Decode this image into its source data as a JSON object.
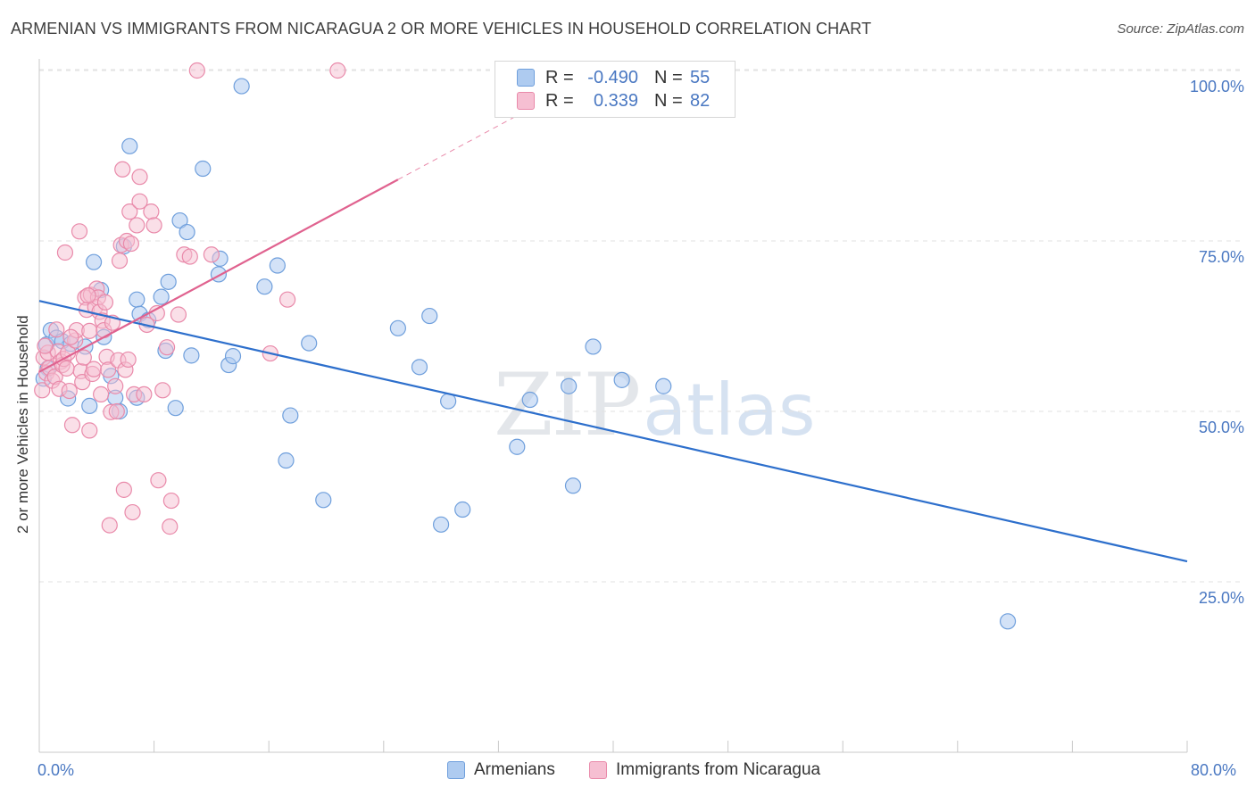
{
  "header": {
    "title": "ARMENIAN VS IMMIGRANTS FROM NICARAGUA 2 OR MORE VEHICLES IN HOUSEHOLD CORRELATION CHART",
    "source": "Source: ZipAtlas.com"
  },
  "watermark": {
    "zip": "ZIP",
    "atlas": "atlas"
  },
  "legend": {
    "series1": {
      "r_label": "R =",
      "r_value": "-0.490",
      "n_label": "N =",
      "n_value": "55"
    },
    "series2": {
      "r_label": "R =",
      "r_value": "0.339",
      "n_label": "N =",
      "n_value": "82"
    }
  },
  "colors": {
    "blue_fill": "#aecbf0",
    "blue_stroke": "#6f9fdc",
    "blue_line": "#2d6fcc",
    "pink_fill": "#f6bfd2",
    "pink_stroke": "#e98aaa",
    "pink_line": "#e0628f",
    "grid": "#e2e2e2",
    "tick_text": "#4a78c2"
  },
  "chart_data": {
    "type": "scatter",
    "title": "ARMENIAN VS IMMIGRANTS FROM NICARAGUA 2 OR MORE VEHICLES IN HOUSEHOLD CORRELATION CHART",
    "xlabel": "",
    "ylabel": "2 or more Vehicles in Household",
    "xlim": [
      0,
      80
    ],
    "ylim": [
      0,
      104
    ],
    "x_tick_labels": {
      "min": "0.0%",
      "max": "80.0%"
    },
    "y_ticks": [
      25,
      50,
      75,
      100
    ],
    "y_tick_labels": [
      "25.0%",
      "50.0%",
      "75.0%",
      "100.0%"
    ],
    "legend_position": "top-center",
    "series": [
      {
        "name": "Armenians",
        "color": "#aecbf0",
        "trend": {
          "x0": 0,
          "y0": 66.2,
          "x1": 80,
          "y1": 28.0
        },
        "points": [
          [
            0.5,
            59.8
          ],
          [
            0.6,
            56.3
          ],
          [
            0.8,
            61.9
          ],
          [
            1.2,
            60.8
          ],
          [
            1.6,
            60.3
          ],
          [
            2.0,
            51.9
          ],
          [
            2.2,
            59.9
          ],
          [
            3.2,
            59.5
          ],
          [
            3.5,
            50.8
          ],
          [
            3.8,
            71.9
          ],
          [
            4.3,
            67.8
          ],
          [
            4.5,
            60.9
          ],
          [
            5.0,
            55.2
          ],
          [
            5.3,
            52.0
          ],
          [
            5.6,
            50.0
          ],
          [
            5.9,
            74.2
          ],
          [
            6.3,
            88.9
          ],
          [
            6.8,
            66.4
          ],
          [
            6.8,
            52.0
          ],
          [
            7.0,
            64.3
          ],
          [
            7.6,
            63.4
          ],
          [
            8.5,
            66.8
          ],
          [
            8.8,
            58.9
          ],
          [
            9.0,
            69.0
          ],
          [
            9.5,
            50.5
          ],
          [
            9.8,
            78.0
          ],
          [
            10.3,
            76.3
          ],
          [
            10.6,
            58.2
          ],
          [
            11.4,
            85.6
          ],
          [
            12.5,
            70.1
          ],
          [
            12.6,
            72.4
          ],
          [
            13.2,
            56.8
          ],
          [
            13.5,
            58.1
          ],
          [
            14.1,
            97.7
          ],
          [
            15.7,
            68.3
          ],
          [
            16.6,
            71.4
          ],
          [
            17.2,
            42.8
          ],
          [
            17.5,
            49.4
          ],
          [
            18.8,
            60.0
          ],
          [
            19.8,
            37.0
          ],
          [
            25.0,
            62.2
          ],
          [
            26.5,
            56.5
          ],
          [
            27.2,
            64.0
          ],
          [
            28.0,
            33.4
          ],
          [
            28.5,
            51.5
          ],
          [
            29.5,
            35.6
          ],
          [
            33.3,
            44.8
          ],
          [
            34.2,
            51.7
          ],
          [
            36.9,
            53.7
          ],
          [
            37.2,
            39.1
          ],
          [
            38.6,
            59.5
          ],
          [
            40.6,
            54.6
          ],
          [
            43.5,
            53.7
          ],
          [
            67.5,
            19.2
          ],
          [
            0.3,
            54.8
          ]
        ]
      },
      {
        "name": "Immigrants from Nicaragua",
        "color": "#f6bfd2",
        "trend": {
          "x0": 0,
          "y0": 55.8,
          "x1": 25,
          "y1": 84.0,
          "dash_x1": 35,
          "dash_y1": 95.3
        },
        "points": [
          [
            0.2,
            53.1
          ],
          [
            0.3,
            57.9
          ],
          [
            0.5,
            55.6
          ],
          [
            0.6,
            58.6
          ],
          [
            0.7,
            56.4
          ],
          [
            0.9,
            54.5
          ],
          [
            1.1,
            55.1
          ],
          [
            1.2,
            62.0
          ],
          [
            1.3,
            58.8
          ],
          [
            1.4,
            53.3
          ],
          [
            1.5,
            57.3
          ],
          [
            1.6,
            56.8
          ],
          [
            1.7,
            57.7
          ],
          [
            1.8,
            73.3
          ],
          [
            2.0,
            58.6
          ],
          [
            2.1,
            53.0
          ],
          [
            2.3,
            48.0
          ],
          [
            2.5,
            60.4
          ],
          [
            2.6,
            61.9
          ],
          [
            2.8,
            76.4
          ],
          [
            2.9,
            55.9
          ],
          [
            3.0,
            54.3
          ],
          [
            3.1,
            57.9
          ],
          [
            3.2,
            66.7
          ],
          [
            3.3,
            64.9
          ],
          [
            3.5,
            61.8
          ],
          [
            3.5,
            47.2
          ],
          [
            3.6,
            67.1
          ],
          [
            3.7,
            55.5
          ],
          [
            3.8,
            56.2
          ],
          [
            3.9,
            65.3
          ],
          [
            4.0,
            68.0
          ],
          [
            4.1,
            66.7
          ],
          [
            4.2,
            64.6
          ],
          [
            4.3,
            52.5
          ],
          [
            4.4,
            63.3
          ],
          [
            4.5,
            61.9
          ],
          [
            4.6,
            66.0
          ],
          [
            4.7,
            58.0
          ],
          [
            4.8,
            56.1
          ],
          [
            4.9,
            33.3
          ],
          [
            5.0,
            49.9
          ],
          [
            5.1,
            63.0
          ],
          [
            5.3,
            53.7
          ],
          [
            5.5,
            57.5
          ],
          [
            5.6,
            72.1
          ],
          [
            5.7,
            74.4
          ],
          [
            5.8,
            85.5
          ],
          [
            5.9,
            38.5
          ],
          [
            6.0,
            56.1
          ],
          [
            6.1,
            75.0
          ],
          [
            6.2,
            57.6
          ],
          [
            6.3,
            79.3
          ],
          [
            6.4,
            74.6
          ],
          [
            6.5,
            35.2
          ],
          [
            6.6,
            52.5
          ],
          [
            6.8,
            77.3
          ],
          [
            7.0,
            80.8
          ],
          [
            7.0,
            84.4
          ],
          [
            7.3,
            52.5
          ],
          [
            7.5,
            62.7
          ],
          [
            7.8,
            79.3
          ],
          [
            8.0,
            77.3
          ],
          [
            8.2,
            64.4
          ],
          [
            8.3,
            39.9
          ],
          [
            8.6,
            53.1
          ],
          [
            8.9,
            59.4
          ],
          [
            9.1,
            33.1
          ],
          [
            9.2,
            36.9
          ],
          [
            9.7,
            64.2
          ],
          [
            10.1,
            73.0
          ],
          [
            10.5,
            72.7
          ],
          [
            11.0,
            100.0
          ],
          [
            12.0,
            73.0
          ],
          [
            16.1,
            58.5
          ],
          [
            17.3,
            66.4
          ],
          [
            20.8,
            100.0
          ],
          [
            0.4,
            59.6
          ],
          [
            1.9,
            56.3
          ],
          [
            2.2,
            60.9
          ],
          [
            5.4,
            50.0
          ],
          [
            3.4,
            67.0
          ]
        ]
      }
    ]
  },
  "axis": {
    "ylabel": "2 or more Vehicles in Household",
    "y_ticks": [
      "25.0%",
      "50.0%",
      "75.0%",
      "100.0%"
    ],
    "x_min": "0.0%",
    "x_max": "80.0%"
  },
  "bottom_legend": {
    "series1": "Armenians",
    "series2": "Immigrants from Nicaragua"
  }
}
